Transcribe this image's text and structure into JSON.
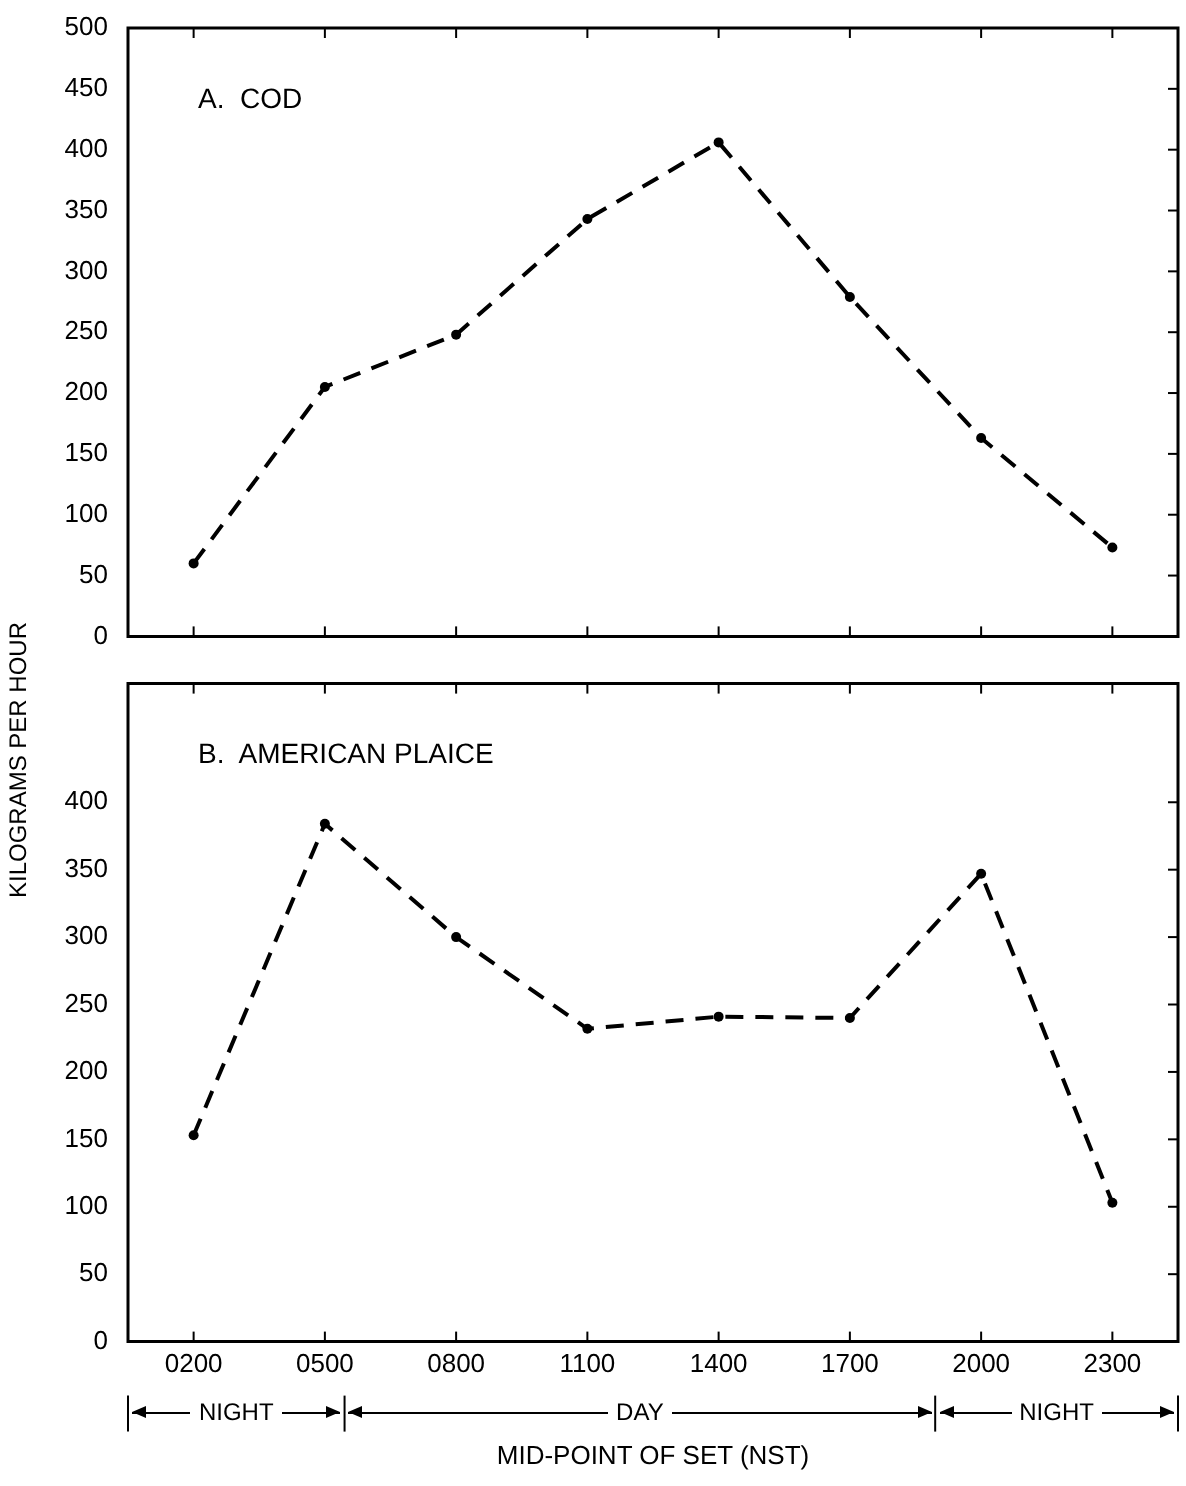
{
  "chart_data": [
    {
      "type": "line",
      "title": "A.  COD",
      "ylabel": "KILOGRAMS PER HOUR",
      "categories": [
        "0200",
        "0500",
        "0800",
        "1100",
        "1400",
        "1700",
        "2000",
        "2300"
      ],
      "series": [
        {
          "color": "#000000",
          "values": [
            60,
            205,
            248,
            343,
            406,
            279,
            163,
            73
          ]
        }
      ],
      "ylim": [
        0,
        500
      ],
      "yticks": [
        0,
        50,
        100,
        150,
        200,
        250,
        300,
        350,
        400,
        450,
        500
      ],
      "tick_labels": "y",
      "grid": false,
      "legend": false,
      "marker": "circle",
      "line_style": "dashed"
    },
    {
      "type": "line",
      "title": "B.  AMERICAN PLAICE",
      "xlabel": "MID-POINT OF SET (NST)",
      "categories": [
        "0200",
        "0500",
        "0800",
        "1100",
        "1400",
        "1700",
        "2000",
        "2300"
      ],
      "series": [
        {
          "color": "#000000",
          "values": [
            153,
            384,
            300,
            232,
            241,
            240,
            347,
            103
          ]
        }
      ],
      "ylim": [
        0,
        488
      ],
      "yticks": [
        0,
        50,
        100,
        150,
        200,
        250,
        300,
        350,
        400
      ],
      "annotations": [
        "NIGHT",
        "DAY",
        "NIGHT"
      ],
      "grid": false,
      "legend": false,
      "marker": "circle",
      "line_style": "dashed"
    }
  ]
}
